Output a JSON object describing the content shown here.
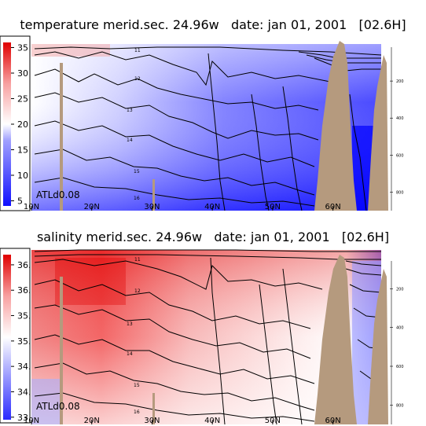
{
  "chart_data": [
    {
      "type": "heatmap",
      "title": "temperature merid.sec. 24.96w   date: jan 01, 2001   [02.6H]",
      "experiment": "ATLd0.08",
      "colorbar": {
        "ticks": [
          "5",
          "10",
          "15",
          "20",
          "25",
          "30",
          "35"
        ],
        "values": [
          5,
          10,
          15,
          20,
          25,
          30,
          35
        ],
        "range": [
          4,
          36
        ],
        "colors": [
          "#1010ff",
          "#ffffff",
          "#ee1010"
        ]
      },
      "x_ticks": [
        "10N",
        "20N",
        "30N",
        "40N",
        "50N",
        "60N"
      ],
      "x_values": [
        10,
        20,
        30,
        40,
        50,
        60
      ],
      "xlim": [
        10,
        68
      ],
      "y_ticks": [
        "200",
        "400",
        "600",
        "800"
      ],
      "y_values": [
        200,
        400,
        600,
        800
      ],
      "ylim": [
        0,
        900
      ],
      "contour_labels": [
        "11",
        "12",
        "13",
        "14",
        "15",
        "16"
      ],
      "terrain_color": "#b59a7e"
    },
    {
      "type": "heatmap",
      "title": "salinity merid.sec. 24.96w   date: jan 01, 2001   [02.6H]",
      "experiment": "ATLd0.08",
      "colorbar": {
        "ticks": [
          "33.5",
          "34.",
          "34.5",
          "35.",
          "35.5",
          "36.",
          "36.5"
        ],
        "values": [
          33.5,
          34.0,
          34.5,
          35.0,
          35.5,
          36.0,
          36.5
        ],
        "range": [
          33.45,
          36.7
        ],
        "colors": [
          "#2a2aff",
          "#ffffff",
          "#ee1010"
        ]
      },
      "x_ticks": [
        "10N",
        "20N",
        "30N",
        "40N",
        "50N",
        "60N"
      ],
      "x_values": [
        10,
        20,
        30,
        40,
        50,
        60
      ],
      "xlim": [
        10,
        68
      ],
      "y_ticks": [
        "200",
        "400",
        "600",
        "800"
      ],
      "y_values": [
        200,
        400,
        600,
        800
      ],
      "ylim": [
        0,
        900
      ],
      "contour_labels": [
        "11",
        "12",
        "13",
        "14",
        "15",
        "16"
      ],
      "terrain_color": "#b59a7e"
    }
  ]
}
